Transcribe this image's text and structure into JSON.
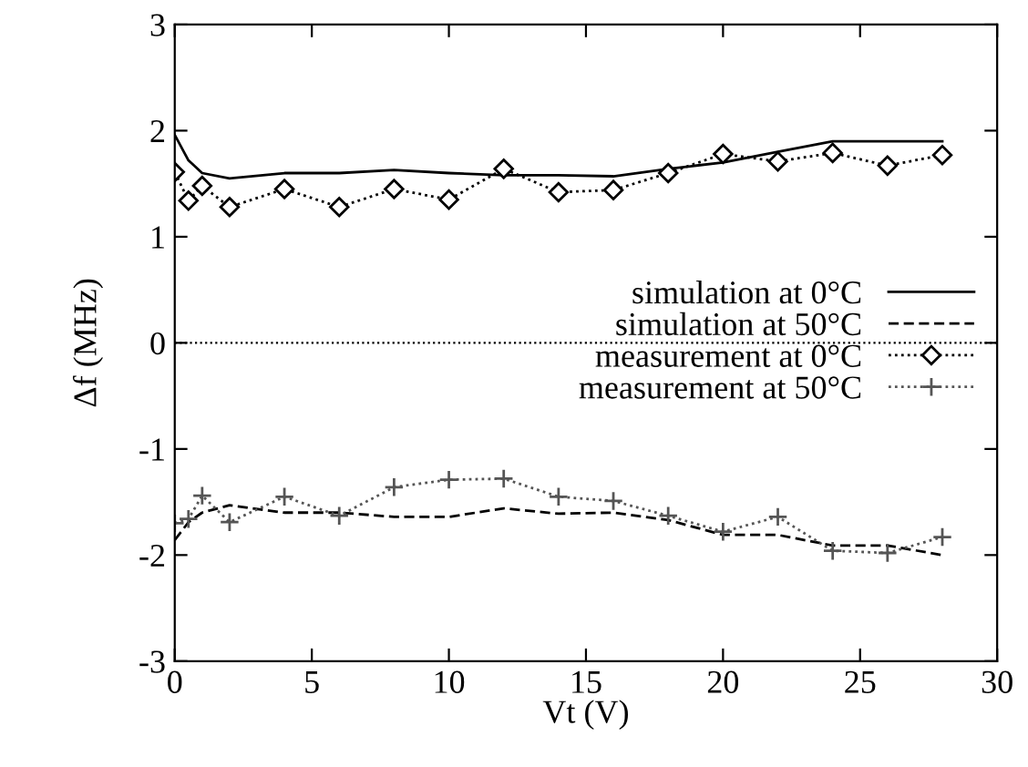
{
  "chart_data": {
    "type": "line",
    "xlabel": "Vt (V)",
    "ylabel": "Δf (MHz)",
    "x": [
      0,
      0.5,
      1,
      2,
      4,
      6,
      8,
      10,
      12,
      14,
      16,
      18,
      20,
      22,
      24,
      26,
      28
    ],
    "series": [
      {
        "name": "simulation at 0°C",
        "color": "#000000",
        "line_style": "solid",
        "marker": "none",
        "values": [
          1.96,
          1.72,
          1.6,
          1.55,
          1.6,
          1.6,
          1.63,
          1.6,
          1.58,
          1.58,
          1.57,
          1.64,
          1.7,
          1.8,
          1.9,
          1.9,
          1.9
        ]
      },
      {
        "name": "simulation at 50°C",
        "color": "#000000",
        "line_style": "dashed",
        "marker": "none",
        "values": [
          -1.86,
          -1.69,
          -1.6,
          -1.53,
          -1.6,
          -1.6,
          -1.64,
          -1.64,
          -1.56,
          -1.61,
          -1.6,
          -1.67,
          -1.81,
          -1.81,
          -1.91,
          -1.91,
          -2.0
        ]
      },
      {
        "name": "measurement at 0°C",
        "color": "#000000",
        "line_style": "dotted",
        "marker": "diamond",
        "values": [
          1.61,
          1.34,
          1.48,
          1.28,
          1.45,
          1.28,
          1.45,
          1.35,
          1.64,
          1.42,
          1.44,
          1.6,
          1.78,
          1.71,
          1.79,
          1.67,
          1.77
        ]
      },
      {
        "name": "measurement at 50°C",
        "color": "#555555",
        "line_style": "dotted",
        "marker": "cross",
        "values": [
          -1.7,
          -1.66,
          -1.44,
          -1.69,
          -1.45,
          -1.63,
          -1.36,
          -1.29,
          -1.28,
          -1.45,
          -1.49,
          -1.63,
          -1.78,
          -1.64,
          -1.96,
          -1.98,
          -1.83
        ]
      }
    ],
    "xlim": [
      0,
      30
    ],
    "xticks": [
      0,
      5,
      10,
      15,
      20,
      25,
      30
    ],
    "ylim": [
      -3,
      3
    ],
    "yticks": [
      -3,
      -2,
      -1,
      0,
      1,
      2,
      3
    ],
    "ref_lines": [
      {
        "axis": "y",
        "value": 0,
        "line_style": "dotted",
        "color": "#000000"
      }
    ],
    "legend": "center right",
    "grid": false
  }
}
